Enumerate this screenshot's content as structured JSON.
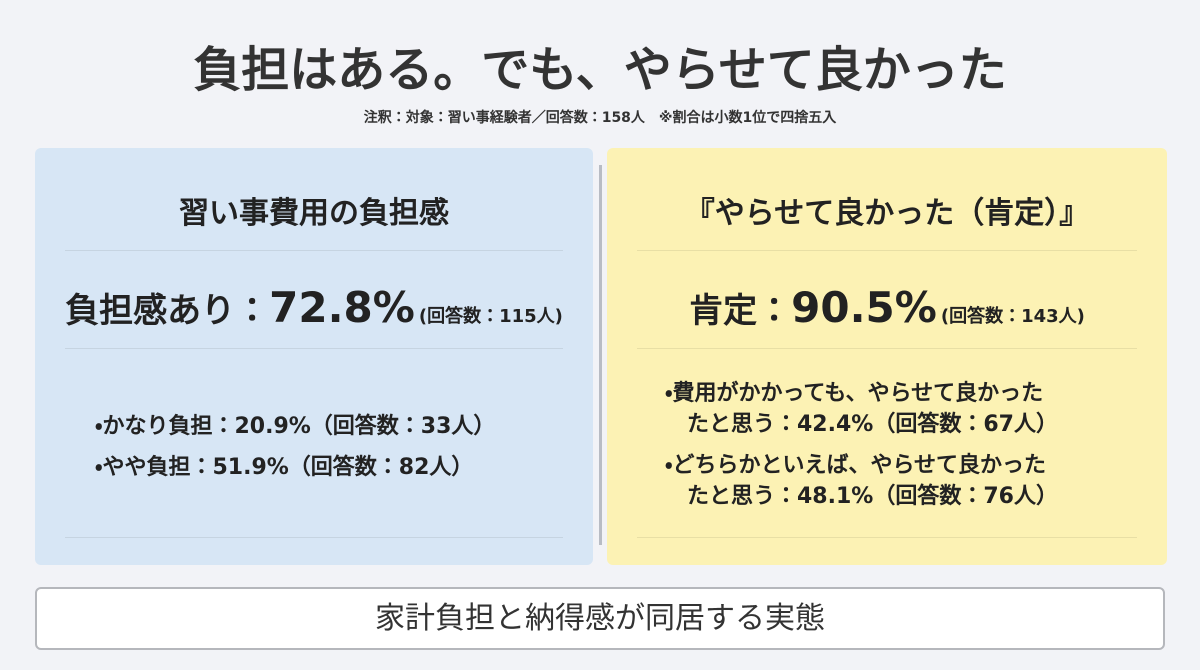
{
  "header": {
    "title": "負担はある。でも、やらせて良かった",
    "note": "注釈：対象：習い事経験者／回答数：158人　※割合は小数1位で四捨五入"
  },
  "left": {
    "heading": "習い事費用の負担感",
    "main": {
      "label": "負担感あり：",
      "value": "72.8%",
      "count": "(回答数：115人)"
    },
    "bullets": [
      [
        "・かなり負担：20.9%（回答数：33人）"
      ],
      [
        "・やや負担：51.9%（回答数：82人）"
      ]
    ]
  },
  "right": {
    "heading": "『やらせて良かった（肯定）』",
    "main": {
      "label": "肯定：",
      "value": "90.5%",
      "count": "(回答数：143人)"
    },
    "bullets": [
      [
        "・費用がかかっても、やらせて良かった",
        "たと思う：42.4%（回答数：67人）"
      ],
      [
        "・どちらかといえば、やらせて良かった",
        "たと思う：48.1%（回答数：76人）"
      ]
    ]
  },
  "footer": {
    "text": "家計負担と納得感が同居する実態"
  }
}
